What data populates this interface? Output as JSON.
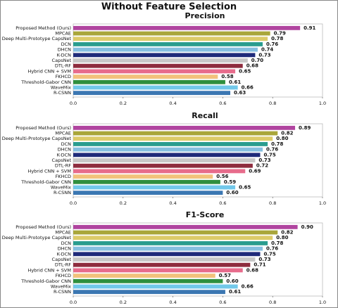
{
  "title": "Without Feature Selection",
  "chart_data": [
    {
      "type": "bar",
      "orientation": "horizontal",
      "title": "Precision",
      "categories": [
        "Proposed Method (Ours)",
        "MPCAE",
        "Deep Multi-Prototype CapsNet",
        "DCN",
        "DHCN",
        "K-DCN",
        "CapsNet",
        "DTL-RF",
        "Hybrid CNN + SVM",
        "FKHCD",
        "Threshold-Gabor CNN",
        "WaveMix",
        "R-CSNN"
      ],
      "values": [
        0.91,
        0.79,
        0.78,
        0.76,
        0.74,
        0.73,
        0.7,
        0.68,
        0.65,
        0.58,
        0.61,
        0.66,
        0.63
      ],
      "value_labels": [
        "0.91",
        "0.79",
        "0.78",
        "0.76",
        "0.74",
        "0.73",
        "0.70",
        "0.68",
        "0.65",
        "0.58",
        "0.61",
        "0.66",
        "0.63"
      ],
      "colors": [
        "#b0449f",
        "#a9a63a",
        "#dccb6a",
        "#2a9d8f",
        "#86bfe0",
        "#1f2a7a",
        "#c8c8c8",
        "#8e2c3e",
        "#e76c8c",
        "#f2c27c",
        "#2f8f3e",
        "#72c8ea",
        "#3b77b2"
      ],
      "xlim": [
        0,
        1
      ],
      "xticks": [
        {
          "value": 0,
          "label": "0.0"
        },
        0.2,
        0.4,
        0.6,
        0.8,
        {
          "value": 1,
          "label": "1.0"
        }
      ]
    },
    {
      "type": "bar",
      "orientation": "horizontal",
      "title": "Recall",
      "categories": [
        "Proposed Method (Ours)",
        "MPCAE",
        "Deep Multi-Prototype CapsNet",
        "DCN",
        "DHCN",
        "K-DCN",
        "CapsNet",
        "DTL-RF",
        "Hybrid CNN + SVM",
        "FKHCD",
        "Threshold-Gabor CNN",
        "WaveMix",
        "R-CSNN"
      ],
      "values": [
        0.89,
        0.82,
        0.8,
        0.78,
        0.76,
        0.75,
        0.73,
        0.72,
        0.69,
        0.56,
        0.59,
        0.65,
        0.6
      ],
      "value_labels": [
        "0.89",
        "0.82",
        "0.80",
        "0.78",
        "0.76",
        "0.75",
        "0.73",
        "0.72",
        "0.69",
        "0.56",
        "0.59",
        "0.65",
        "0.60"
      ],
      "colors": [
        "#b0449f",
        "#a9a63a",
        "#dccb6a",
        "#2a9d8f",
        "#86bfe0",
        "#1f2a7a",
        "#c8c8c8",
        "#8e2c3e",
        "#e76c8c",
        "#f2c27c",
        "#2f8f3e",
        "#72c8ea",
        "#3b77b2"
      ],
      "xlim": [
        0,
        1
      ],
      "xticks": [
        {
          "value": 0,
          "label": "0.0"
        },
        0.2,
        0.4,
        0.6,
        0.8,
        {
          "value": 1,
          "label": "1.0"
        }
      ]
    },
    {
      "type": "bar",
      "orientation": "horizontal",
      "title": "F1-Score",
      "categories": [
        "Proposed Method (Ours)",
        "MPCAE",
        "Deep Multi-Prototype CapsNet",
        "DCN",
        "DHCN",
        "K-DCN",
        "CapsNet",
        "DTL-RF",
        "Hybrid CNN + SVM",
        "FKHCD",
        "Threshold-Gabor CNN",
        "WaveMix",
        "R-CSNN"
      ],
      "values": [
        0.9,
        0.82,
        0.8,
        0.78,
        0.76,
        0.75,
        0.73,
        0.71,
        0.68,
        0.57,
        0.6,
        0.66,
        0.61
      ],
      "value_labels": [
        "0.90",
        "0.82",
        "0.80",
        "0.78",
        "0.76",
        "0.75",
        "0.73",
        "0.71",
        "0.68",
        "0.57",
        "0.60",
        "0.66",
        "0.61"
      ],
      "colors": [
        "#b0449f",
        "#a9a63a",
        "#dccb6a",
        "#2a9d8f",
        "#86bfe0",
        "#1f2a7a",
        "#c8c8c8",
        "#8e2c3e",
        "#e76c8c",
        "#f2c27c",
        "#2f8f3e",
        "#72c8ea",
        "#3b77b2"
      ],
      "xlim": [
        0,
        1
      ],
      "xticks": [
        {
          "value": 0,
          "label": "0.0"
        },
        0.2,
        0.4,
        0.6,
        0.8,
        {
          "value": 1,
          "label": "1.0"
        }
      ]
    }
  ]
}
